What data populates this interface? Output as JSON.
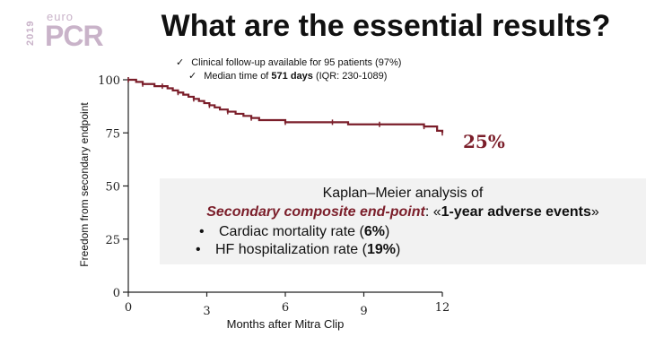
{
  "header": {
    "year": "2019",
    "logo_small": "euro",
    "logo_main": "PCR",
    "title": "What are the essential results?"
  },
  "notes": {
    "check_mark": "✓",
    "line1": "Clinical follow-up available for 95 patients (97%)",
    "line2_prefix": "Median time of ",
    "line2_bold": "571 days",
    "line2_suffix": " (IQR: 230-1089)"
  },
  "final_rate": "25%",
  "summary": {
    "line1": "Kaplan–Meier analysis of",
    "endpoint": "Secondary composite end-point",
    "line2_mid": ": «",
    "line2_bold": "1-year adverse events",
    "line2_end": "»",
    "bullet_char": "•",
    "bullet1_prefix": "Cardiac mortality rate (",
    "bullet1_value": "6%",
    "bullet1_suffix": ")",
    "bullet2_prefix": "HF hospitalization rate (",
    "bullet2_value": "19%",
    "bullet2_suffix": ")"
  },
  "chart_data": {
    "type": "line",
    "xlabel": "Months after Mitra Clip",
    "ylabel": "Freedom from secondary endpoint",
    "x_ticks": [
      "0",
      "3",
      "6",
      "9",
      "12"
    ],
    "y_ticks": [
      "0",
      "25",
      "50",
      "75",
      "100"
    ],
    "xlim": [
      0,
      12
    ],
    "ylim": [
      0,
      100
    ],
    "grid": false,
    "line_color": "#7b1e2a",
    "series": [
      {
        "x": [
          0,
          0.1,
          0.3,
          0.55,
          0.8,
          1.0,
          1.3,
          1.5,
          1.7,
          1.9,
          2.1,
          2.3,
          2.5,
          2.7,
          2.9,
          3.1,
          3.3,
          3.5,
          3.8,
          4.1,
          4.4,
          4.7,
          5.0,
          5.5,
          6.0,
          6.6,
          7.2,
          7.8,
          8.4,
          9.0,
          9.6,
          10.2,
          10.8,
          11.3,
          11.7,
          11.8,
          12.0
        ],
        "y": [
          100,
          100,
          99,
          98,
          98,
          97,
          97,
          96,
          95,
          94,
          93,
          92,
          91,
          90,
          89,
          88,
          87,
          86,
          85,
          84,
          83,
          82,
          81,
          81,
          80,
          80,
          80,
          80,
          79,
          79,
          79,
          79,
          79,
          78,
          78,
          76,
          75
        ]
      }
    ]
  }
}
